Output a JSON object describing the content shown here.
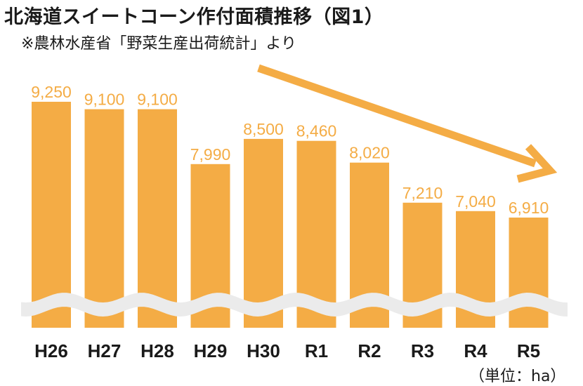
{
  "title": "北海道スイートコーン作付面積推移（図1）",
  "source_note": "※農林水産省「野菜生産出荷統計」より",
  "unit_label": "（単位：ha）",
  "colors": {
    "bar": "#F4AC45",
    "label": "#F4AC45",
    "arrow": "#F4AC45",
    "axis_text": "#1a1a1a",
    "break_band": "#EBEBEB"
  },
  "chart_data": {
    "type": "bar",
    "categories": [
      "H26",
      "H27",
      "H28",
      "H29",
      "H30",
      "R1",
      "R2",
      "R3",
      "R4",
      "R5"
    ],
    "values": [
      9250,
      9100,
      9100,
      7990,
      8500,
      8460,
      8020,
      7210,
      7040,
      6910
    ],
    "value_labels": [
      "9,250",
      "9,100",
      "9,100",
      "7,990",
      "8,500",
      "8,460",
      "8,020",
      "7,210",
      "7,040",
      "6,910"
    ],
    "title": "北海道スイートコーン作付面積推移（図1）",
    "xlabel": "",
    "ylabel": "",
    "unit": "ha",
    "axis_break": true,
    "trend_arrow": "downward",
    "grid": false,
    "legend": "none"
  }
}
